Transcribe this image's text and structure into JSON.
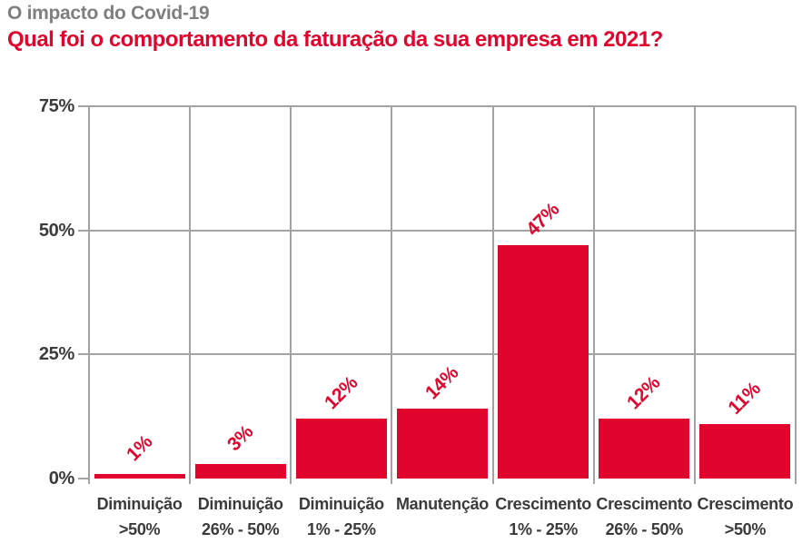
{
  "header": {
    "pretitle": "O impacto do Covid-19",
    "title": "Qual foi o comportamento da faturação da sua empresa em 2021?"
  },
  "colors": {
    "accent_red": "#e1052d",
    "pretitle_gray": "#7f7f7f",
    "text_dark": "#3b3b3b",
    "grid_gray": "#a3a3a3"
  },
  "chart_data": {
    "type": "bar",
    "title": "Qual foi o comportamento da faturação da sua empresa em 2021?",
    "subtitle": "O impacto do Covid-19",
    "categories": [
      [
        "Diminuição",
        ">50%"
      ],
      [
        "Diminuição",
        "26% - 50%"
      ],
      [
        "Diminuição",
        "1% - 25%"
      ],
      [
        "Manutenção"
      ],
      [
        "Crescimento",
        "1% - 25%"
      ],
      [
        "Crescimento",
        "26% - 50%"
      ],
      [
        "Crescimento",
        ">50%"
      ]
    ],
    "values": [
      1,
      3,
      12,
      14,
      47,
      12,
      11
    ],
    "bar_labels": [
      "1%",
      "3%",
      "12%",
      "14%",
      "47%",
      "12%",
      "11%"
    ],
    "bar_label_rotation_deg": -45,
    "y_ticks": [
      {
        "value": 0,
        "label": "0%"
      },
      {
        "value": 25,
        "label": "25%"
      },
      {
        "value": 50,
        "label": "50%"
      },
      {
        "value": 75,
        "label": "75%"
      }
    ],
    "ylim": [
      0,
      75
    ],
    "xlabel": "",
    "ylabel": "",
    "grid": true,
    "legend": false,
    "bar_color": "#e1052d"
  }
}
